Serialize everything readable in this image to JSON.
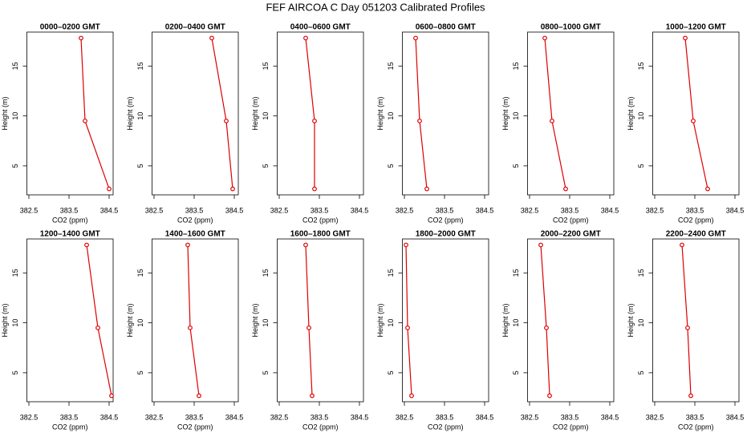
{
  "title": "FEF AIRCOA C  Day 051203  Calibrated Profiles",
  "chart_data": [
    {
      "type": "line",
      "title": "0000–0200 GMT",
      "xlabel": "CO2 (ppm)",
      "ylabel": "Height (m)",
      "color": "#dd0000",
      "x": [
        383.8,
        383.9,
        384.5
      ],
      "values": [
        17.8,
        9.5,
        2.7
      ],
      "xlim": [
        382.45,
        384.6
      ],
      "ylim": [
        2.1,
        18.4
      ],
      "xticks": [
        382.5,
        383.5,
        384.5
      ],
      "yticks": [
        5,
        10,
        15
      ]
    },
    {
      "type": "line",
      "title": "0200–0400 GMT",
      "xlabel": "CO2 (ppm)",
      "ylabel": "Height (m)",
      "color": "#dd0000",
      "x": [
        383.94,
        384.3,
        384.46
      ],
      "values": [
        17.8,
        9.5,
        2.7
      ],
      "xlim": [
        382.45,
        384.6
      ],
      "ylim": [
        2.1,
        18.4
      ],
      "xticks": [
        382.5,
        383.5,
        384.5
      ],
      "yticks": [
        5,
        10,
        15
      ]
    },
    {
      "type": "line",
      "title": "0400–0600 GMT",
      "xlabel": "CO2 (ppm)",
      "ylabel": "Height (m)",
      "color": "#dd0000",
      "x": [
        383.16,
        383.38,
        383.38
      ],
      "values": [
        17.8,
        9.5,
        2.7
      ],
      "xlim": [
        382.45,
        384.6
      ],
      "ylim": [
        2.1,
        18.4
      ],
      "xticks": [
        382.5,
        383.5,
        384.5
      ],
      "yticks": [
        5,
        10,
        15
      ]
    },
    {
      "type": "line",
      "title": "0600–0800 GMT",
      "xlabel": "CO2 (ppm)",
      "ylabel": "Height (m)",
      "color": "#dd0000",
      "x": [
        382.78,
        382.88,
        383.06
      ],
      "values": [
        17.8,
        9.5,
        2.7
      ],
      "xlim": [
        382.45,
        384.6
      ],
      "ylim": [
        2.1,
        18.4
      ],
      "xticks": [
        382.5,
        383.5,
        384.5
      ],
      "yticks": [
        5,
        10,
        15
      ]
    },
    {
      "type": "line",
      "title": "0800–1000 GMT",
      "xlabel": "CO2 (ppm)",
      "ylabel": "Height (m)",
      "color": "#dd0000",
      "x": [
        382.88,
        383.06,
        383.4
      ],
      "values": [
        17.8,
        9.5,
        2.7
      ],
      "xlim": [
        382.45,
        384.6
      ],
      "ylim": [
        2.1,
        18.4
      ],
      "xticks": [
        382.5,
        383.5,
        384.5
      ],
      "yticks": [
        5,
        10,
        15
      ]
    },
    {
      "type": "line",
      "title": "1000–1200 GMT",
      "xlabel": "CO2 (ppm)",
      "ylabel": "Height (m)",
      "color": "#dd0000",
      "x": [
        383.26,
        383.46,
        383.82
      ],
      "values": [
        17.8,
        9.5,
        2.7
      ],
      "xlim": [
        382.45,
        384.6
      ],
      "ylim": [
        2.1,
        18.4
      ],
      "xticks": [
        382.5,
        383.5,
        384.5
      ],
      "yticks": [
        5,
        10,
        15
      ]
    },
    {
      "type": "line",
      "title": "1200–1400 GMT",
      "xlabel": "CO2 (ppm)",
      "ylabel": "Height (m)",
      "color": "#dd0000",
      "x": [
        383.94,
        384.22,
        384.56
      ],
      "values": [
        17.8,
        9.5,
        2.7
      ],
      "xlim": [
        382.45,
        384.6
      ],
      "ylim": [
        2.1,
        18.4
      ],
      "xticks": [
        382.5,
        383.5,
        384.5
      ],
      "yticks": [
        5,
        10,
        15
      ]
    },
    {
      "type": "line",
      "title": "1400–1600 GMT",
      "xlabel": "CO2 (ppm)",
      "ylabel": "Height (m)",
      "color": "#dd0000",
      "x": [
        383.34,
        383.4,
        383.62
      ],
      "values": [
        17.8,
        9.5,
        2.7
      ],
      "xlim": [
        382.45,
        384.6
      ],
      "ylim": [
        2.1,
        18.4
      ],
      "xticks": [
        382.5,
        383.5,
        384.5
      ],
      "yticks": [
        5,
        10,
        15
      ]
    },
    {
      "type": "line",
      "title": "1600–1800 GMT",
      "xlabel": "CO2 (ppm)",
      "ylabel": "Height (m)",
      "color": "#dd0000",
      "x": [
        383.16,
        383.24,
        383.32
      ],
      "values": [
        17.8,
        9.5,
        2.7
      ],
      "xlim": [
        382.45,
        384.6
      ],
      "ylim": [
        2.1,
        18.4
      ],
      "xticks": [
        382.5,
        383.5,
        384.5
      ],
      "yticks": [
        5,
        10,
        15
      ]
    },
    {
      "type": "line",
      "title": "1800–2000 GMT",
      "xlabel": "CO2 (ppm)",
      "ylabel": "Height (m)",
      "color": "#dd0000",
      "x": [
        382.54,
        382.58,
        382.68
      ],
      "values": [
        17.8,
        9.5,
        2.7
      ],
      "xlim": [
        382.45,
        384.6
      ],
      "ylim": [
        2.1,
        18.4
      ],
      "xticks": [
        382.5,
        383.5,
        384.5
      ],
      "yticks": [
        5,
        10,
        15
      ]
    },
    {
      "type": "line",
      "title": "2000–2200 GMT",
      "xlabel": "CO2 (ppm)",
      "ylabel": "Height (m)",
      "color": "#dd0000",
      "x": [
        382.78,
        382.92,
        383.0
      ],
      "values": [
        17.8,
        9.5,
        2.7
      ],
      "xlim": [
        382.45,
        384.6
      ],
      "ylim": [
        2.1,
        18.4
      ],
      "xticks": [
        382.5,
        383.5,
        384.5
      ],
      "yticks": [
        5,
        10,
        15
      ]
    },
    {
      "type": "line",
      "title": "2200–2400 GMT",
      "xlabel": "CO2 (ppm)",
      "ylabel": "Height (m)",
      "color": "#dd0000",
      "x": [
        383.18,
        383.32,
        383.4
      ],
      "values": [
        17.8,
        9.5,
        2.7
      ],
      "xlim": [
        382.45,
        384.6
      ],
      "ylim": [
        2.1,
        18.4
      ],
      "xticks": [
        382.5,
        383.5,
        384.5
      ],
      "yticks": [
        5,
        10,
        15
      ]
    }
  ]
}
